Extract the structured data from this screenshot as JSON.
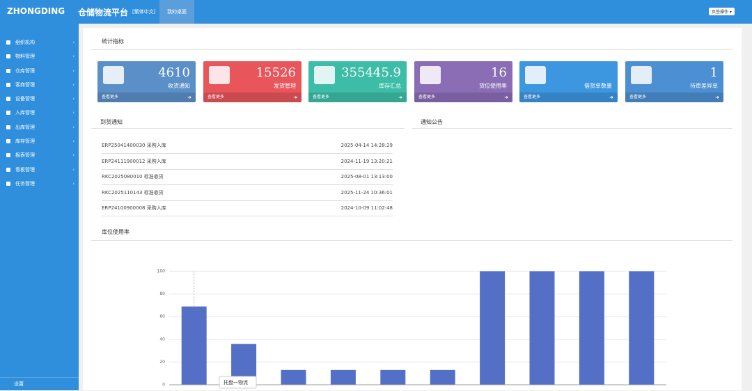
{
  "header": {
    "logo": "ZHONGDING",
    "title": "仓储物流平台",
    "lang": "[繁体中文]",
    "tab": "我的桌面",
    "tab_ops": "页签操作 ▾"
  },
  "sidebar": {
    "menu": [
      "组织机构",
      "物料管理",
      "仓库管理",
      "客商管理",
      "设备管理",
      "入库管理",
      "出库管理",
      "库存管理",
      "报表管理",
      "看板管理",
      "任务管理"
    ],
    "footer": "设置"
  },
  "stats": {
    "title": "统计指标",
    "more": "查看更多",
    "cards": [
      {
        "value": 4610,
        "label": "收货通知"
      },
      {
        "value": 15526,
        "label": "发货管理"
      },
      {
        "value": 355445.9,
        "label": "库存汇总"
      },
      {
        "value": 16,
        "label": "货位使用率"
      },
      {
        "label": "借货单数量"
      },
      {
        "value": 1,
        "label": "待审差异单"
      }
    ]
  },
  "arrivals": {
    "title": "到货通知",
    "rows": [
      [
        "ERP25041400030 采购入库",
        "2025-04-14 14:28:29"
      ],
      [
        "ERP24111900012 采购入库",
        "2024-11-19 13:20:21"
      ],
      [
        "RKC2025080010 标准收货",
        "2025-08-01 13:13:00"
      ],
      [
        "RKC2025110143 标准收货",
        "2025-11-24 10:36:01"
      ],
      [
        "ERP24100900008 采购入库",
        "2024-10-09 11:02:48"
      ]
    ]
  },
  "notices": {
    "title": "通知公告"
  },
  "chart_data": {
    "type": "bar",
    "title": "库位使用率",
    "categories": [
      null,
      null,
      null,
      null,
      null,
      null,
      null,
      null,
      null,
      null
    ],
    "values": [
      69,
      36,
      13,
      13,
      13,
      13,
      100,
      100,
      100,
      100
    ],
    "color": "#5470c6",
    "ylim": [
      0,
      100
    ],
    "yticks": [
      0,
      20,
      40,
      60,
      80,
      100
    ],
    "grid": true,
    "tooltip": "托盘一物流"
  }
}
